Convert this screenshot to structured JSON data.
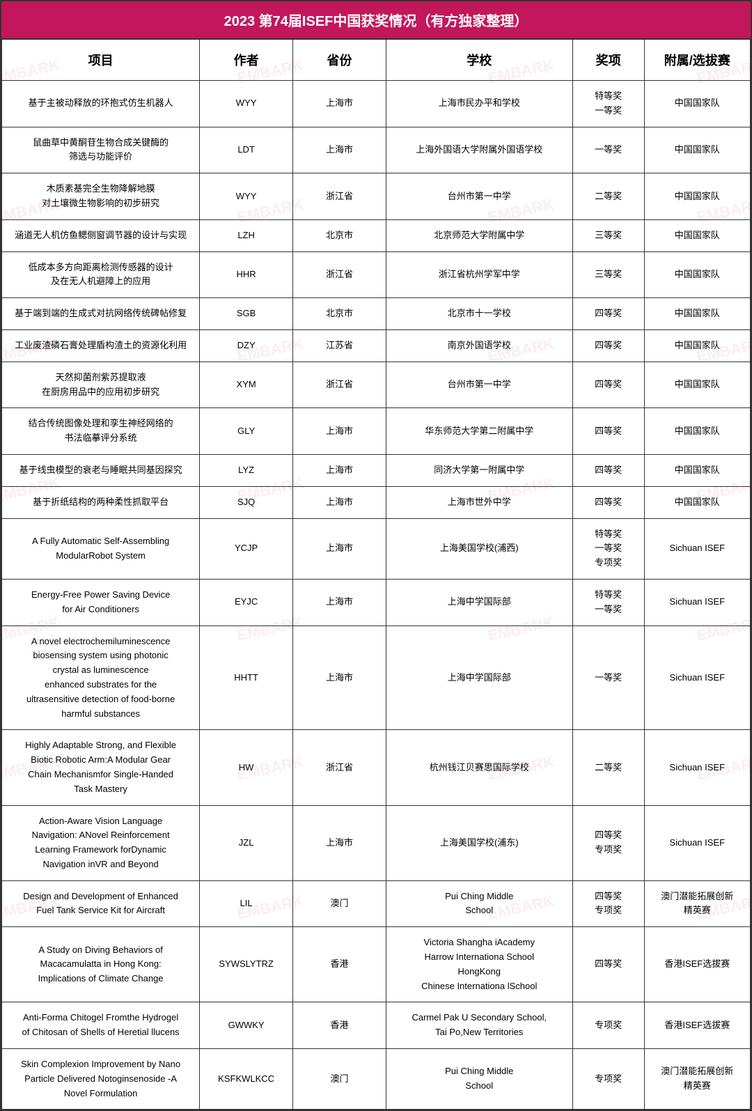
{
  "title": "2023 第74届ISEF中国获奖情况（有方独家整理）",
  "columns": {
    "project": "项目",
    "author": "作者",
    "province": "省份",
    "school": "学校",
    "award": "奖项",
    "selection": "附属/选拔赛"
  },
  "rows": [
    {
      "project": "基于主被动释放的环抱式仿生机器人",
      "author": "WYY",
      "province": "上海市",
      "school": "上海市民办平和学校",
      "award": "特等奖\n一等奖",
      "selection": "中国国家队"
    },
    {
      "project": "鼠曲草中黄酮苷生物合成关键酶的\n筛选与功能评价",
      "author": "LDT",
      "province": "上海市",
      "school": "上海外国语大学附属外国语学校",
      "award": "一等奖",
      "selection": "中国国家队"
    },
    {
      "project": "木质素基完全生物降解地膜\n对土壤微生物影响的初步研究",
      "author": "WYY",
      "province": "浙江省",
      "school": "台州市第一中学",
      "award": "二等奖",
      "selection": "中国国家队"
    },
    {
      "project": "涵道无人机仿鱼鳃侧窗调节器的设计与实现",
      "author": "LZH",
      "province": "北京市",
      "school": "北京师范大学附属中学",
      "award": "三等奖",
      "selection": "中国国家队"
    },
    {
      "project": "低成本多方向距离检测传感器的设计\n及在无人机避障上的应用",
      "author": "HHR",
      "province": "浙江省",
      "school": "浙江省杭州学军中学",
      "award": "三等奖",
      "selection": "中国国家队"
    },
    {
      "project": "基于端到端的生成式对抗网络传统碑帖修复",
      "author": "SGB",
      "province": "北京市",
      "school": "北京市十一学校",
      "award": "四等奖",
      "selection": "中国国家队"
    },
    {
      "project": "工业废渣磷石膏处理盾构渣土的资源化利用",
      "author": "DZY",
      "province": "江苏省",
      "school": "南京外国语学校",
      "award": "四等奖",
      "selection": "中国国家队"
    },
    {
      "project": "天然抑菌剂紫苏提取液\n在厨房用品中的应用初步研究",
      "author": "XYM",
      "province": "浙江省",
      "school": "台州市第一中学",
      "award": "四等奖",
      "selection": "中国国家队"
    },
    {
      "project": "结合传统图像处理和孪生神经网络的\n书法临摹评分系统",
      "author": "GLY",
      "province": "上海市",
      "school": "华东师范大学第二附属中学",
      "award": "四等奖",
      "selection": "中国国家队"
    },
    {
      "project": "基于线虫模型的衰老与睡眠共同基因探究",
      "author": "LYZ",
      "province": "上海市",
      "school": "同济大学第一附属中学",
      "award": "四等奖",
      "selection": "中国国家队"
    },
    {
      "project": "基于折纸结构的两种柔性抓取平台",
      "author": "SJQ",
      "province": "上海市",
      "school": "上海市世外中学",
      "award": "四等奖",
      "selection": "中国国家队"
    },
    {
      "project": "A Fully Automatic Self-Assembling\nModularRobot System",
      "author": "YCJP",
      "province": "上海市",
      "school": "上海美国学校(浦西)",
      "award": "特等奖\n一等奖\n专项奖",
      "selection": "Sichuan ISEF"
    },
    {
      "project": "Energy-Free Power Saving Device\nfor Air Conditioners",
      "author": "EYJC",
      "province": "上海市",
      "school": "上海中学国际部",
      "award": "特等奖\n一等奖",
      "selection": "Sichuan ISEF"
    },
    {
      "project": "A novel electrochemiluminescence\nbiosensing system using photonic\ncrystal as luminescence\nenhanced substrates for the\nultrasensitive detection of food-borne\nharmful substances",
      "author": "HHTT",
      "province": "上海市",
      "school": "上海中学国际部",
      "award": "一等奖",
      "selection": "Sichuan ISEF"
    },
    {
      "project": "Highly Adaptable Strong, and Flexible\nBiotic Robotic Arm:A Modular Gear\nChain Mechanismfor Single-Handed\nTask Mastery",
      "author": "HW",
      "province": "浙江省",
      "school": "杭州钱江贝赛思国际学校",
      "award": "二等奖",
      "selection": "Sichuan ISEF"
    },
    {
      "project": "Action-Aware Vision Language\nNavigation: ANovel Reinforcement\nLearning Framework forDynamic\nNavigation inVR and Beyond",
      "author": "JZL",
      "province": "上海市",
      "school": "上海美国学校(浦东)",
      "award": "四等奖\n专项奖",
      "selection": "Sichuan ISEF"
    },
    {
      "project": "Design and Development of Enhanced\nFuel Tank Service Kit for Aircraft",
      "author": "LIL",
      "province": "澳门",
      "school": "Pui Ching Middle\nSchool",
      "award": "四等奖\n专项奖",
      "selection": "澳门潜能拓展创新\n精英赛"
    },
    {
      "project": "A Study on Diving Behaviors of\nMacacamulatta in Hong Kong:\nImplications of Climate Change",
      "author": "SYWSLYTRZ",
      "province": "香港",
      "school": "Victoria Shangha iAcademy\nHarrow Internationa School\nHongKong\nChinese Internationa lSchool",
      "award": "四等奖",
      "selection": "香港ISEF选拔赛"
    },
    {
      "project": "Anti-Forma Chitogel Fromthe Hydrogel\nof Chitosan of Shells of Heretial llucens",
      "author": "GWWKY",
      "province": "香港",
      "school": "Carmel Pak U Secondary School,\nTai Po,New Territories",
      "award": "专项奖",
      "selection": "香港ISEF选拔赛"
    },
    {
      "project": "Skin Complexion Improvement by Nano\nParticle Delivered Notoginsenoside -A\nNovel Formulation",
      "author": "KSFKWLKCC",
      "province": "澳门",
      "school": "Pui Ching Middle\nSchool",
      "award": "专项奖",
      "selection": "澳门潜能拓展创新\n精英赛"
    }
  ],
  "watermark_text": "EMBARK",
  "styling": {
    "title_bg_color": "#c2175b",
    "title_text_color": "#ffffff",
    "border_color": "#333333",
    "header_bg_color": "#ffffff",
    "cell_text_color": "#000000",
    "watermark_color": "rgba(194, 23, 91, 0.08)",
    "title_fontsize": 20,
    "header_fontsize": 18,
    "cell_fontsize": 13,
    "column_widths": {
      "project": 276,
      "author": 130,
      "province": 130,
      "school": 260,
      "award": 100,
      "selection": 148
    }
  }
}
